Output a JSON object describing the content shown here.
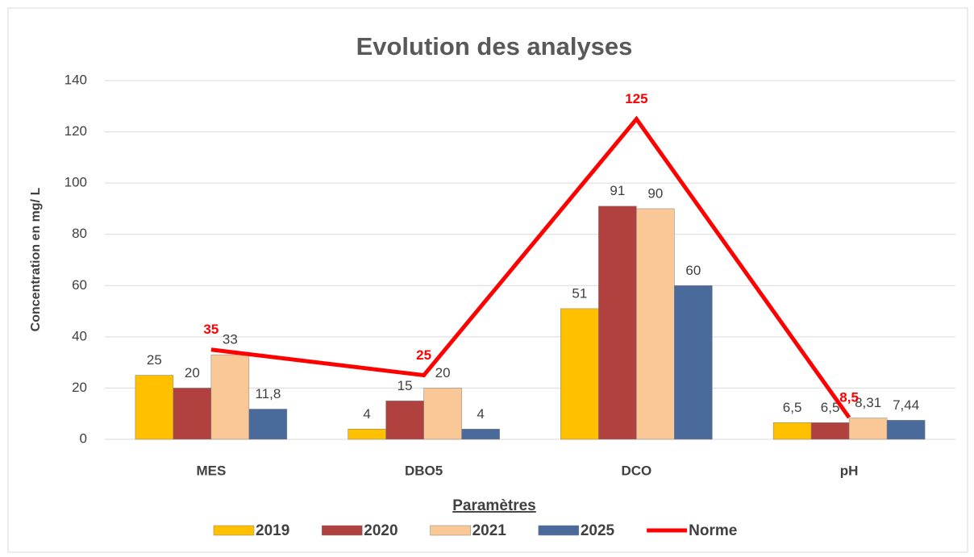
{
  "chart_data": {
    "type": "bar",
    "title": "Evolution des analyses",
    "x_label": "Paramètres",
    "y_label": "Concentration en mg/ L",
    "categories": [
      "MES",
      "DBO5",
      "DCO",
      "pH"
    ],
    "series": [
      {
        "name": "2019",
        "color": "#ffc000",
        "values": [
          25,
          4,
          51,
          6.5
        ],
        "value_labels": [
          "25",
          "4",
          "51",
          "6,5"
        ]
      },
      {
        "name": "2020",
        "color": "#b0413e",
        "values": [
          20,
          15,
          91,
          6.5
        ],
        "value_labels": [
          "20",
          "15",
          "91",
          "6,5"
        ]
      },
      {
        "name": "2021",
        "color": "#f9c896",
        "values": [
          33,
          20,
          90,
          8.31
        ],
        "value_labels": [
          "33",
          "20",
          "90",
          "8,31"
        ]
      },
      {
        "name": "2025",
        "color": "#4a6a9c",
        "values": [
          11.8,
          4,
          60,
          7.44
        ],
        "value_labels": [
          "11,8",
          "4",
          "60",
          "7,44"
        ]
      },
      {
        "name": "Norme",
        "color": "#ff0000",
        "type": "line",
        "values": [
          35,
          25,
          125,
          8.5
        ],
        "value_labels": [
          "35",
          "25",
          "125",
          "8,5"
        ]
      }
    ],
    "ylim": [
      0,
      140
    ],
    "yticks": [
      0,
      20,
      40,
      60,
      80,
      100,
      120,
      140
    ],
    "grid": true,
    "legend": "bottom"
  }
}
